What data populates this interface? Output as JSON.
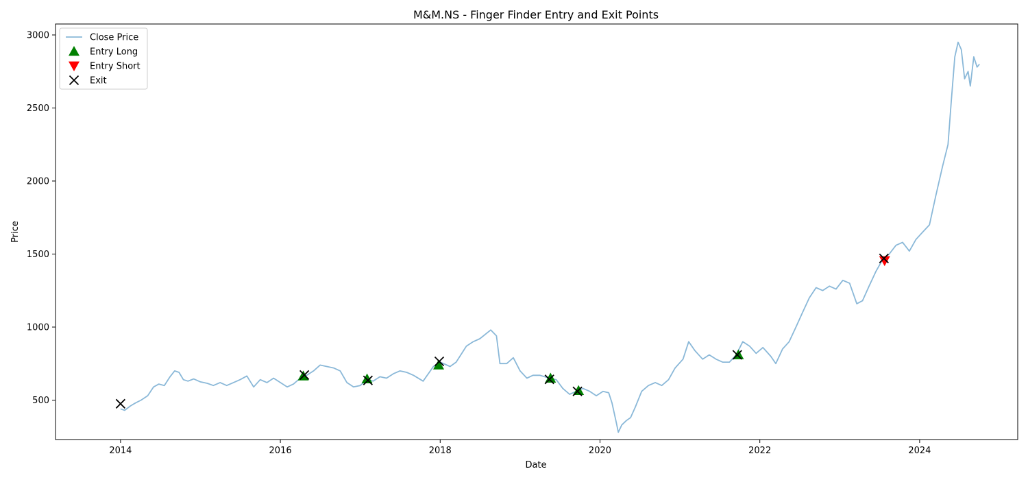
{
  "chart_data": {
    "type": "line",
    "title": "M&M.NS - Finger Finder Entry and Exit Points",
    "xlabel": "Date",
    "ylabel": "Price",
    "xlim": [
      "2013-03-10",
      "2025-03-25"
    ],
    "ylim": [
      230,
      3075
    ],
    "x_ticks": [
      "2014",
      "2016",
      "2018",
      "2020",
      "2022",
      "2024"
    ],
    "y_ticks": [
      500,
      1000,
      1500,
      2000,
      2500,
      3000
    ],
    "grid": false,
    "legend_position": "upper-left",
    "colors": {
      "close": "#8ab8d8",
      "entry_long": "#008000",
      "entry_short": "#ff0000",
      "exit": "#000000"
    },
    "series": [
      {
        "name": "Close Price",
        "kind": "line",
        "points": [
          [
            "2014-01-01",
            440
          ],
          [
            "2014-01-20",
            430
          ],
          [
            "2014-02-15",
            460
          ],
          [
            "2014-03-10",
            480
          ],
          [
            "2014-04-05",
            500
          ],
          [
            "2014-05-05",
            530
          ],
          [
            "2014-06-01",
            590
          ],
          [
            "2014-06-25",
            610
          ],
          [
            "2014-07-20",
            600
          ],
          [
            "2014-08-15",
            660
          ],
          [
            "2014-09-05",
            700
          ],
          [
            "2014-09-25",
            690
          ],
          [
            "2014-10-15",
            640
          ],
          [
            "2014-11-05",
            630
          ],
          [
            "2014-12-01",
            645
          ],
          [
            "2015-01-01",
            625
          ],
          [
            "2015-02-01",
            615
          ],
          [
            "2015-03-01",
            600
          ],
          [
            "2015-04-01",
            620
          ],
          [
            "2015-05-01",
            600
          ],
          [
            "2015-06-01",
            620
          ],
          [
            "2015-07-01",
            640
          ],
          [
            "2015-08-01",
            665
          ],
          [
            "2015-09-01",
            590
          ],
          [
            "2015-10-01",
            640
          ],
          [
            "2015-11-01",
            620
          ],
          [
            "2015-12-01",
            650
          ],
          [
            "2016-01-01",
            620
          ],
          [
            "2016-02-01",
            590
          ],
          [
            "2016-03-01",
            610
          ],
          [
            "2016-04-01",
            650
          ],
          [
            "2016-05-01",
            670
          ],
          [
            "2016-06-01",
            700
          ],
          [
            "2016-07-01",
            740
          ],
          [
            "2016-08-01",
            730
          ],
          [
            "2016-09-01",
            720
          ],
          [
            "2016-10-01",
            700
          ],
          [
            "2016-11-01",
            620
          ],
          [
            "2016-12-01",
            590
          ],
          [
            "2017-01-01",
            600
          ],
          [
            "2017-02-01",
            640
          ],
          [
            "2017-03-01",
            630
          ],
          [
            "2017-04-01",
            660
          ],
          [
            "2017-05-01",
            650
          ],
          [
            "2017-06-01",
            680
          ],
          [
            "2017-07-01",
            700
          ],
          [
            "2017-08-01",
            690
          ],
          [
            "2017-09-01",
            670
          ],
          [
            "2017-10-15",
            630
          ],
          [
            "2017-12-01",
            730
          ],
          [
            "2018-01-01",
            760
          ],
          [
            "2018-02-15",
            730
          ],
          [
            "2018-03-15",
            760
          ],
          [
            "2018-05-01",
            870
          ],
          [
            "2018-06-01",
            900
          ],
          [
            "2018-07-01",
            920
          ],
          [
            "2018-08-20",
            980
          ],
          [
            "2018-09-15",
            940
          ],
          [
            "2018-10-01",
            750
          ],
          [
            "2018-11-01",
            750
          ],
          [
            "2018-12-01",
            790
          ],
          [
            "2019-01-01",
            700
          ],
          [
            "2019-02-01",
            650
          ],
          [
            "2019-03-01",
            670
          ],
          [
            "2019-04-01",
            670
          ],
          [
            "2019-05-15",
            650
          ],
          [
            "2019-06-15",
            640
          ],
          [
            "2019-07-15",
            580
          ],
          [
            "2019-08-15",
            540
          ],
          [
            "2019-09-15",
            560
          ],
          [
            "2019-10-15",
            580
          ],
          [
            "2019-11-15",
            560
          ],
          [
            "2019-12-15",
            530
          ],
          [
            "2020-01-15",
            560
          ],
          [
            "2020-02-10",
            550
          ],
          [
            "2020-02-25",
            480
          ],
          [
            "2020-03-15",
            350
          ],
          [
            "2020-03-25",
            280
          ],
          [
            "2020-04-10",
            330
          ],
          [
            "2020-05-01",
            360
          ],
          [
            "2020-05-20",
            380
          ],
          [
            "2020-06-10",
            450
          ],
          [
            "2020-07-10",
            560
          ],
          [
            "2020-08-10",
            600
          ],
          [
            "2020-09-10",
            620
          ],
          [
            "2020-10-10",
            600
          ],
          [
            "2020-11-10",
            640
          ],
          [
            "2020-12-10",
            720
          ],
          [
            "2021-01-15",
            780
          ],
          [
            "2021-02-10",
            900
          ],
          [
            "2021-03-10",
            840
          ],
          [
            "2021-04-15",
            780
          ],
          [
            "2021-05-15",
            810
          ],
          [
            "2021-06-15",
            780
          ],
          [
            "2021-07-15",
            760
          ],
          [
            "2021-08-15",
            760
          ],
          [
            "2021-09-15",
            810
          ],
          [
            "2021-10-15",
            900
          ],
          [
            "2021-11-15",
            870
          ],
          [
            "2021-12-15",
            820
          ],
          [
            "2022-01-15",
            860
          ],
          [
            "2022-02-20",
            800
          ],
          [
            "2022-03-15",
            750
          ],
          [
            "2022-04-15",
            850
          ],
          [
            "2022-05-15",
            900
          ],
          [
            "2022-06-15",
            1000
          ],
          [
            "2022-07-15",
            1100
          ],
          [
            "2022-08-15",
            1200
          ],
          [
            "2022-09-15",
            1270
          ],
          [
            "2022-10-15",
            1250
          ],
          [
            "2022-11-15",
            1280
          ],
          [
            "2022-12-15",
            1260
          ],
          [
            "2023-01-15",
            1320
          ],
          [
            "2023-02-15",
            1300
          ],
          [
            "2023-03-20",
            1160
          ],
          [
            "2023-04-15",
            1180
          ],
          [
            "2023-05-15",
            1280
          ],
          [
            "2023-06-15",
            1380
          ],
          [
            "2023-07-15",
            1460
          ],
          [
            "2023-08-15",
            1500
          ],
          [
            "2023-09-15",
            1560
          ],
          [
            "2023-10-15",
            1580
          ],
          [
            "2023-11-15",
            1520
          ],
          [
            "2023-12-15",
            1600
          ],
          [
            "2024-01-15",
            1650
          ],
          [
            "2024-02-15",
            1700
          ],
          [
            "2024-03-15",
            1900
          ],
          [
            "2024-04-15",
            2100
          ],
          [
            "2024-05-10",
            2250
          ],
          [
            "2024-05-25",
            2550
          ],
          [
            "2024-06-10",
            2850
          ],
          [
            "2024-06-25",
            2950
          ],
          [
            "2024-07-10",
            2900
          ],
          [
            "2024-07-25",
            2700
          ],
          [
            "2024-08-10",
            2750
          ],
          [
            "2024-08-20",
            2650
          ],
          [
            "2024-09-05",
            2850
          ],
          [
            "2024-09-20",
            2780
          ],
          [
            "2024-10-01",
            2800
          ]
        ]
      },
      {
        "name": "Entry Long",
        "kind": "marker",
        "marker": "triangle-up",
        "points": [
          [
            "2016-04-15",
            665
          ],
          [
            "2017-02-01",
            645
          ],
          [
            "2017-12-25",
            740
          ],
          [
            "2019-05-20",
            650
          ],
          [
            "2019-09-25",
            565
          ],
          [
            "2021-09-25",
            810
          ]
        ]
      },
      {
        "name": "Entry Short",
        "kind": "marker",
        "marker": "triangle-down",
        "points": [
          [
            "2023-07-25",
            1455
          ]
        ]
      },
      {
        "name": "Exit",
        "kind": "marker",
        "marker": "x",
        "points": [
          [
            "2014-01-01",
            475
          ],
          [
            "2016-04-20",
            672
          ],
          [
            "2017-02-05",
            635
          ],
          [
            "2017-12-28",
            765
          ],
          [
            "2019-05-15",
            642
          ],
          [
            "2019-09-20",
            560
          ],
          [
            "2021-09-20",
            810
          ],
          [
            "2023-07-22",
            1470
          ]
        ]
      }
    ]
  }
}
